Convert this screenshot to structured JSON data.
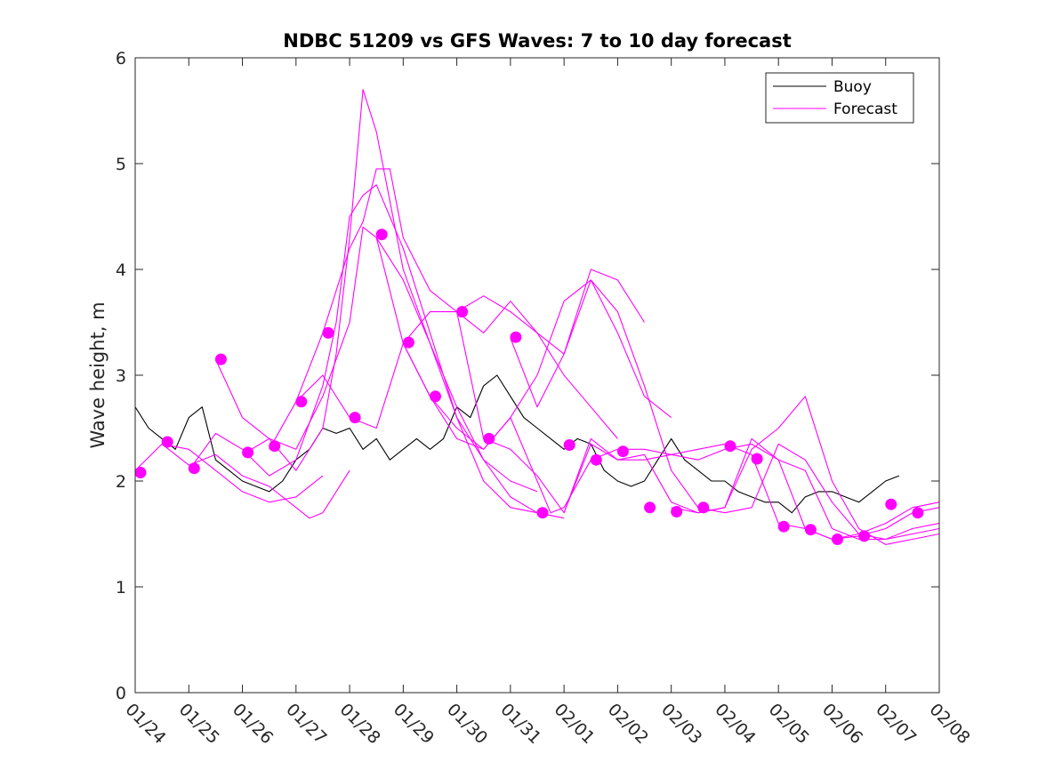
{
  "chart_data": {
    "type": "line",
    "title": "NDBC 51209 vs GFS Waves: 7 to 10 day forecast",
    "xlabel": "",
    "ylabel": "Wave height, m",
    "xlim": [
      0,
      15
    ],
    "ylim": [
      0,
      6
    ],
    "grid": false,
    "x_tick_labels": [
      "01/24",
      "01/25",
      "01/26",
      "01/27",
      "01/28",
      "01/29",
      "01/30",
      "01/31",
      "02/01",
      "02/02",
      "02/03",
      "02/04",
      "02/05",
      "02/06",
      "02/07",
      "02/08"
    ],
    "y_ticks": [
      0,
      1,
      2,
      3,
      4,
      5,
      6
    ],
    "y_tick_labels": [
      "0",
      "1",
      "2",
      "3",
      "4",
      "5",
      "6"
    ],
    "legend_position": "top-right",
    "legend": [
      {
        "label": "Buoy",
        "color": "#000000"
      },
      {
        "label": "Forecast",
        "color": "#ff00ff"
      }
    ],
    "colors": {
      "buoy": "#000000",
      "forecast": "#ff00ff",
      "axis": "#262626"
    },
    "series": [
      {
        "name": "Buoy",
        "x": [
          0,
          0.25,
          0.5,
          0.75,
          1.0,
          1.25,
          1.5,
          1.75,
          2.0,
          2.25,
          2.5,
          2.75,
          3.0,
          3.25,
          3.5,
          3.75,
          4.0,
          4.25,
          4.5,
          4.75,
          5.0,
          5.25,
          5.5,
          5.75,
          6.0,
          6.25,
          6.5,
          6.75,
          7.0,
          7.25,
          7.5,
          7.75,
          8.0,
          8.25,
          8.5,
          8.75,
          9.0,
          9.25,
          9.5,
          9.75,
          10.0,
          10.25,
          10.5,
          10.75,
          11.0,
          11.25,
          11.5,
          11.75,
          12.0,
          12.25,
          12.5,
          12.75,
          13.0,
          13.25,
          13.5,
          13.75,
          14.0,
          14.25
        ],
        "values": [
          2.7,
          2.5,
          2.4,
          2.3,
          2.6,
          2.7,
          2.2,
          2.1,
          2.0,
          1.95,
          1.9,
          2.0,
          2.2,
          2.3,
          2.5,
          2.45,
          2.5,
          2.3,
          2.4,
          2.2,
          2.3,
          2.4,
          2.3,
          2.4,
          2.7,
          2.6,
          2.9,
          3.0,
          2.8,
          2.6,
          2.5,
          2.4,
          2.3,
          2.4,
          2.35,
          2.1,
          2.0,
          1.95,
          2.0,
          2.2,
          2.4,
          2.2,
          2.1,
          2.0,
          2.0,
          1.9,
          1.85,
          1.8,
          1.8,
          1.7,
          1.85,
          1.9,
          1.9,
          1.85,
          1.8,
          1.9,
          2.0,
          2.05
        ]
      },
      {
        "name": "Forecast 1",
        "x": [
          0,
          0.5,
          1.0,
          1.5,
          2.0,
          2.5,
          3.0,
          3.5
        ],
        "values": [
          2.1,
          2.35,
          2.3,
          2.1,
          1.9,
          1.8,
          1.85,
          2.05
        ]
      },
      {
        "name": "Forecast 2",
        "x": [
          0.5,
          1.0,
          1.5,
          2.0,
          2.5,
          3.0,
          3.25,
          3.5,
          4.0
        ],
        "values": [
          2.35,
          2.15,
          2.25,
          2.05,
          1.95,
          1.75,
          1.65,
          1.7,
          2.1
        ]
      },
      {
        "name": "Forecast 3",
        "x": [
          1.0,
          1.5,
          2.0,
          2.5,
          3.0,
          3.5,
          3.75,
          4.0,
          4.25,
          4.5,
          5.0,
          5.5,
          6.0,
          6.5,
          7.0,
          7.5
        ],
        "values": [
          2.1,
          2.45,
          2.3,
          2.05,
          2.2,
          2.9,
          3.5,
          4.5,
          4.7,
          4.8,
          4.2,
          3.4,
          2.6,
          2.2,
          2.0,
          1.9
        ]
      },
      {
        "name": "Forecast 4",
        "x": [
          1.5,
          2.0,
          2.5,
          3.0,
          3.5,
          3.75,
          4.0,
          4.25,
          4.5,
          5.0,
          5.5,
          6.0,
          6.5,
          7.0,
          7.5
        ],
        "values": [
          3.15,
          2.6,
          2.4,
          2.1,
          2.5,
          3.2,
          4.3,
          5.7,
          5.3,
          4.0,
          3.3,
          2.7,
          2.2,
          1.85,
          1.7
        ]
      },
      {
        "name": "Forecast 5",
        "x": [
          2.0,
          2.5,
          3.0,
          3.5,
          4.0,
          4.25,
          4.5,
          5.0,
          5.5,
          6.0,
          6.5,
          7.0,
          7.5,
          8.0
        ],
        "values": [
          2.25,
          2.4,
          2.3,
          2.8,
          3.5,
          4.4,
          4.3,
          3.9,
          3.3,
          2.6,
          2.0,
          1.75,
          1.7,
          1.65
        ]
      },
      {
        "name": "Forecast 6",
        "x": [
          2.5,
          3.0,
          3.5,
          4.0,
          4.25,
          4.5,
          4.75,
          5.0,
          5.5,
          6.0,
          6.5,
          7.0,
          7.5,
          8.0,
          8.5,
          9.0
        ],
        "values": [
          2.3,
          2.75,
          3.4,
          4.2,
          4.45,
          4.95,
          4.95,
          4.3,
          3.8,
          3.6,
          3.4,
          3.7,
          3.4,
          3.0,
          2.7,
          2.4
        ]
      },
      {
        "name": "Forecast 7",
        "x": [
          3.0,
          3.5,
          4.0,
          4.5,
          5.0,
          5.5,
          6.0,
          6.5,
          7.0,
          7.5,
          8.0,
          8.5,
          9.0,
          9.5
        ],
        "values": [
          2.75,
          3.0,
          2.6,
          2.5,
          3.3,
          3.6,
          3.6,
          3.75,
          3.6,
          3.4,
          3.2,
          4.0,
          3.9,
          3.5
        ]
      },
      {
        "name": "Forecast 8",
        "x": [
          4.5,
          5.0,
          5.5,
          6.0,
          6.5,
          7.0,
          7.5,
          8.0,
          8.5,
          9.0,
          9.5,
          10.0
        ],
        "values": [
          4.3,
          3.3,
          2.8,
          2.4,
          2.3,
          2.6,
          3.0,
          3.7,
          3.9,
          3.4,
          2.8,
          2.6
        ]
      },
      {
        "name": "Forecast 9",
        "x": [
          5.0,
          5.5,
          6.0,
          6.5,
          7.0,
          7.5,
          7.75,
          8.0,
          8.5,
          9.0,
          9.5,
          10.0,
          10.5,
          11.0
        ],
        "values": [
          3.3,
          2.8,
          2.5,
          2.3,
          2.6,
          2.0,
          1.7,
          1.75,
          2.2,
          2.3,
          2.3,
          2.25,
          2.3,
          2.35
        ]
      },
      {
        "name": "Forecast 10",
        "x": [
          6.0,
          6.5,
          7.0,
          7.5,
          8.0,
          8.5,
          9.0,
          9.5,
          10.0,
          10.5,
          11.0,
          11.5,
          12.0
        ],
        "values": [
          3.6,
          2.4,
          2.3,
          2.05,
          1.7,
          2.4,
          2.2,
          2.2,
          2.25,
          2.2,
          2.3,
          2.35,
          2.2
        ]
      },
      {
        "name": "Forecast 11",
        "x": [
          7.0,
          7.5,
          8.0,
          8.5,
          9.0,
          9.5,
          10.0,
          10.5,
          11.0,
          11.5,
          12.0,
          12.5,
          13.0,
          13.5,
          14.0,
          14.5,
          15.0
        ],
        "values": [
          3.35,
          2.7,
          3.2,
          3.9,
          3.6,
          2.9,
          2.1,
          1.75,
          1.7,
          1.75,
          2.35,
          2.2,
          1.8,
          1.5,
          1.45,
          1.5,
          1.55
        ]
      },
      {
        "name": "Forecast 12",
        "x": [
          8.0,
          8.5,
          9.0,
          9.5,
          10.0,
          10.5,
          11.0,
          11.5,
          12.0,
          12.5,
          13.0,
          13.5,
          14.0,
          14.5,
          15.0
        ],
        "values": [
          1.7,
          2.35,
          2.2,
          2.25,
          1.8,
          1.7,
          1.75,
          2.3,
          2.5,
          2.8,
          2.0,
          1.55,
          1.4,
          1.45,
          1.5
        ]
      },
      {
        "name": "Forecast 13",
        "x": [
          10.0,
          10.5,
          11.0,
          11.5,
          12.0,
          12.5,
          13.0,
          13.5,
          14.0,
          14.5,
          15.0
        ],
        "values": [
          1.75,
          1.7,
          1.75,
          2.4,
          2.2,
          2.1,
          1.55,
          1.45,
          1.45,
          1.55,
          1.6
        ]
      },
      {
        "name": "Forecast 14",
        "x": [
          11.0,
          11.5,
          12.0,
          12.5,
          13.0,
          13.5,
          14.0,
          14.5,
          15.0
        ],
        "values": [
          2.35,
          2.25,
          1.6,
          1.55,
          1.45,
          1.48,
          1.55,
          1.7,
          1.75
        ]
      },
      {
        "name": "Forecast 15",
        "x": [
          12.0,
          12.5,
          13.0,
          13.5,
          14.0,
          14.5,
          15.0
        ],
        "values": [
          2.2,
          1.55,
          1.45,
          1.5,
          1.6,
          1.75,
          1.8
        ]
      }
    ],
    "markers": {
      "name": "Forecast markers",
      "x": [
        0.1,
        0.6,
        1.1,
        1.6,
        2.1,
        2.6,
        3.1,
        3.6,
        4.1,
        4.6,
        5.1,
        5.6,
        6.1,
        6.6,
        7.1,
        7.6,
        8.1,
        8.6,
        9.1,
        9.6,
        10.1,
        10.6,
        11.1,
        11.6,
        12.1,
        12.6,
        13.1,
        13.6,
        14.1,
        14.6
      ],
      "values": [
        2.08,
        2.37,
        2.12,
        3.15,
        2.27,
        2.33,
        2.75,
        3.4,
        2.6,
        4.33,
        3.31,
        2.8,
        3.6,
        2.4,
        3.36,
        1.7,
        2.34,
        2.2,
        2.28,
        1.75,
        1.71,
        1.75,
        2.33,
        2.21,
        1.57,
        1.54,
        1.45,
        1.48,
        1.78,
        1.7
      ]
    }
  }
}
